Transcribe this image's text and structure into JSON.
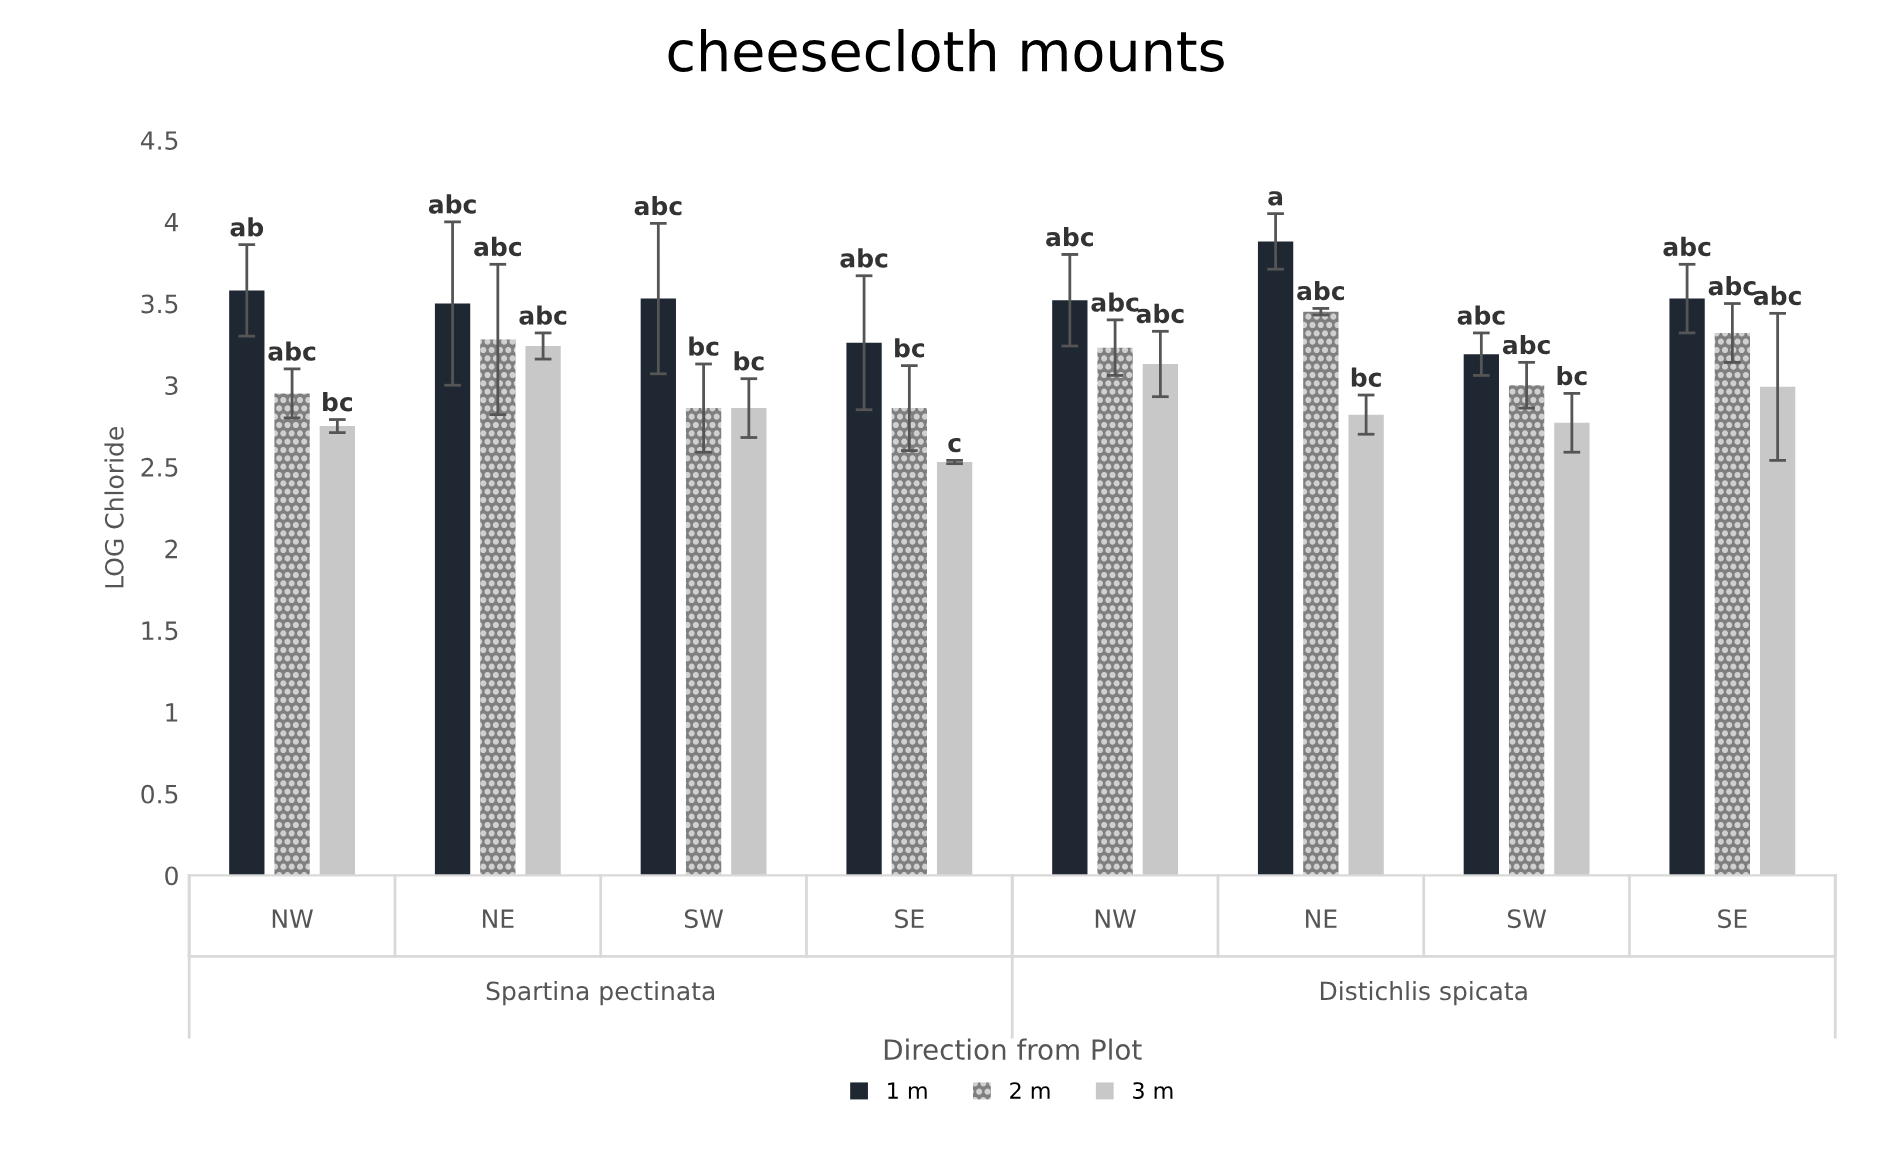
{
  "chart_data": {
    "type": "bar",
    "title": "cheesecloth mounts",
    "xlabel": "Direction from Plot",
    "ylabel": "LOG Chloride",
    "categories": [
      "NW",
      "NE",
      "SW",
      "SE",
      "NW",
      "NE",
      "SW",
      "SE"
    ],
    "annotations": [
      "Spartina pectinata",
      "Distichlis spicata",
      "ab",
      "abc",
      "abc",
      "abc",
      "abc",
      "a",
      "abc",
      "abc",
      "abc",
      "abc",
      "bc",
      "bc",
      "abc",
      "abc",
      "abc",
      "abc",
      "bc",
      "abc",
      "bc",
      "c",
      "abc",
      "bc",
      "bc",
      "abc"
    ],
    "series": [
      {
        "name": "1 m",
        "color": "#1f2733",
        "values": [
          3.58,
          3.5,
          3.53,
          3.26,
          3.52,
          3.88,
          3.19,
          3.53
        ],
        "errors": [
          0.28,
          0.5,
          0.46,
          0.41,
          0.28,
          0.17,
          0.13,
          0.21
        ]
      },
      {
        "name": "2 m",
        "color": "#7f7f7f",
        "values": [
          2.95,
          3.28,
          2.86,
          2.86,
          3.23,
          3.45,
          3.0,
          3.32
        ],
        "errors": [
          0.15,
          0.46,
          0.27,
          0.26,
          0.17,
          0.02,
          0.14,
          0.18
        ]
      },
      {
        "name": "3 m",
        "color": "#c8c8c8",
        "values": [
          2.75,
          3.24,
          2.86,
          2.53,
          3.13,
          2.82,
          2.77,
          2.99
        ],
        "errors": [
          0.04,
          0.08,
          0.18,
          0.01,
          0.2,
          0.12,
          0.18,
          0.45
        ]
      }
    ],
    "ylim": [
      0,
      4.5
    ],
    "yticks": [
      0,
      0.5,
      1,
      1.5,
      2,
      2.5,
      3,
      3.5,
      4,
      4.5
    ],
    "grid": false,
    "legend": "bottom"
  }
}
